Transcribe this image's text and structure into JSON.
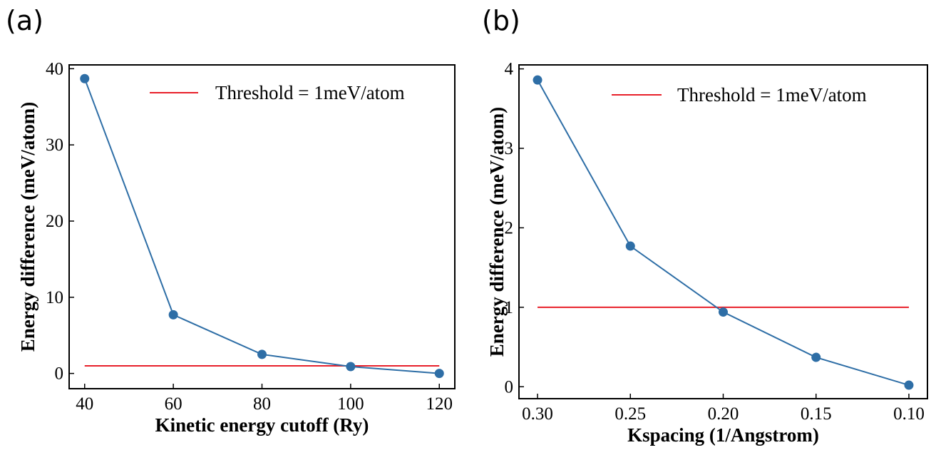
{
  "chart_data": [
    {
      "type": "line",
      "panel_label": "(a)",
      "xlabel": "Kinetic energy cutoff (Ry)",
      "ylabel": "Energy difference (meV/atom)",
      "x": [
        40,
        60,
        80,
        100,
        120
      ],
      "series": [
        {
          "values": [
            38.7,
            7.7,
            2.5,
            0.9,
            0.0
          ],
          "color": "#2e6ea6",
          "marker": "circle"
        }
      ],
      "threshold": {
        "label": "Threshold = 1meV/atom",
        "value": 1,
        "color": "#e8202a"
      },
      "xticks": [
        40,
        60,
        80,
        100,
        120
      ],
      "xtick_labels": [
        "40",
        "60",
        "80",
        "100",
        "120"
      ],
      "yticks": [
        0,
        10,
        20,
        30,
        40
      ],
      "ytick_labels": [
        "0",
        "10",
        "20",
        "30",
        "40"
      ],
      "xlim": [
        36.5,
        123.5
      ],
      "ylim": [
        -2.0,
        40.5
      ],
      "x_reversed": false,
      "legend_position": "top-right",
      "grid": false
    },
    {
      "type": "line",
      "panel_label": "(b)",
      "xlabel": "Kspacing (1/Angstrom)",
      "ylabel": "Energy difference (meV/atom)",
      "x": [
        0.3,
        0.25,
        0.2,
        0.15,
        0.1
      ],
      "series": [
        {
          "values": [
            3.86,
            1.77,
            0.94,
            0.37,
            0.02
          ],
          "color": "#2e6ea6",
          "marker": "circle"
        }
      ],
      "threshold": {
        "label": "Threshold = 1meV/atom",
        "value": 1,
        "color": "#e8202a"
      },
      "xticks": [
        0.3,
        0.25,
        0.2,
        0.15,
        0.1
      ],
      "xtick_labels": [
        "0.30",
        "0.25",
        "0.20",
        "0.15",
        "0.10"
      ],
      "yticks": [
        0,
        1,
        2,
        3,
        4
      ],
      "ytick_labels": [
        "0",
        "1",
        "2",
        "3",
        "4"
      ],
      "xlim": [
        0.31,
        0.09
      ],
      "ylim": [
        -0.15,
        4.05
      ],
      "x_reversed": true,
      "legend_position": "top-right",
      "grid": false
    }
  ]
}
